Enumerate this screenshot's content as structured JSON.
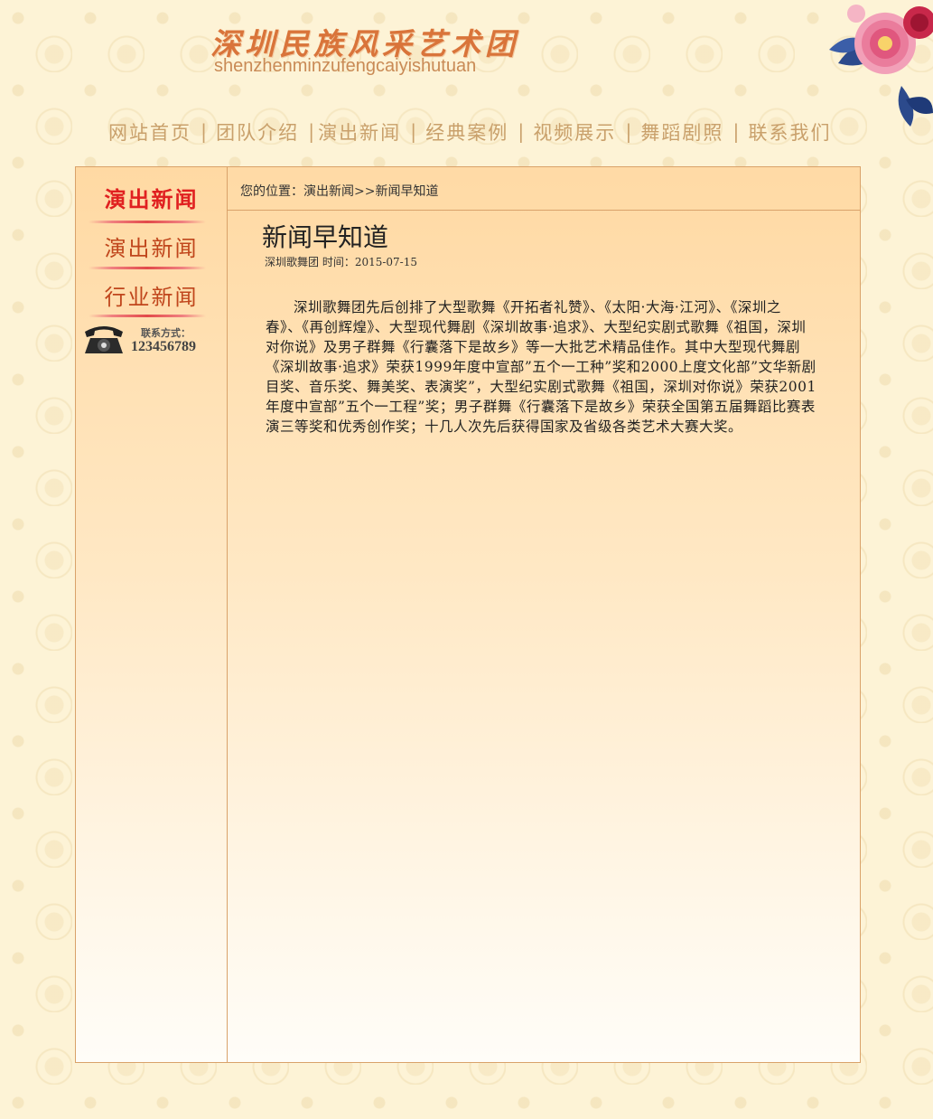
{
  "header": {
    "logo_cn": "深圳民族风采艺术团",
    "logo_pinyin": "shenzhenminzufengcaiyishutuan"
  },
  "nav": {
    "items": [
      "网站首页",
      "团队介绍",
      "演出新闻",
      "经典案例",
      "视频展示",
      "舞蹈剧照",
      "联系我们"
    ],
    "separator": "|"
  },
  "sidebar": {
    "title": "演出新闻",
    "items": [
      "演出新闻",
      "行业新闻"
    ],
    "contact_label": "联系方式：",
    "contact_number": "123456789"
  },
  "breadcrumb": "您的位置：演出新闻>>新闻早知道",
  "article": {
    "title": "新闻早知道",
    "meta": "深圳歌舞团 时间：2015-07-15",
    "body": "深圳歌舞团先后创排了大型歌舞《开拓者礼赞》、《太阳·大海·江河》、《深圳之春》、《再创辉煌》、大型现代舞剧《深圳故事·追求》、大型纪实剧式歌舞《祖国，深圳对你说》及男子群舞《行囊落下是故乡》等一大批艺术精品佳作。其中大型现代舞剧《深圳故事·追求》荣获1999年度中宣部”五个一工种”奖和2000上度文化部”文华新剧目奖、音乐奖、舞美奖、表演奖”，大型纪实剧式歌舞《祖国，深圳对你说》荣获2001年度中宣部”五个一工程”奖；男子群舞《行囊落下是故乡》荣获全国第五届舞蹈比赛表演三等奖和优秀创作奖；十几人次先后获得国家及省级各类艺术大赛大奖。"
  },
  "colors": {
    "accent_red": "#e02020",
    "nav_text": "#c9a06b",
    "border": "#d9a26a"
  }
}
